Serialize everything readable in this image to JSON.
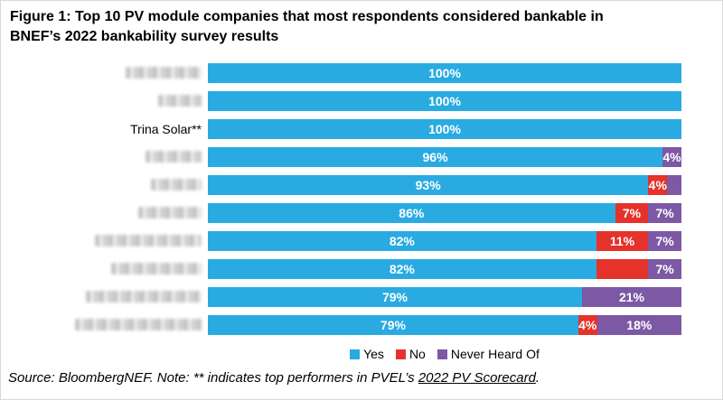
{
  "figure_caption": {
    "line1": "Figure 1:  Top 10 PV module companies that most respondents considered bankable in",
    "line2": "BNEF’s 2022 bankability survey results"
  },
  "source": {
    "prefix": "Source: BloombergNEF. Note: ** indicates top performers in PVEL’s ",
    "link": "2022 PV Scorecard",
    "suffix": "."
  },
  "chart_data": {
    "type": "bar",
    "orientation": "horizontal",
    "stacked": true,
    "title": "Top 10 PV module companies that most respondents considered bankable in BNEF’s 2022 bankability survey results",
    "xlim": [
      0,
      100
    ],
    "grid": false,
    "legend_position": "bottom",
    "series_names": [
      "Yes",
      "No",
      "Never Heard Of"
    ],
    "series_colors": {
      "Yes": "#29ABE2",
      "No": "#E5322A",
      "Never Heard Of": "#7C58A5"
    },
    "rows": [
      {
        "label": "",
        "redacted": true,
        "blur_width": 84,
        "segments": [
          {
            "series": "Yes",
            "value": 100,
            "label": "100%"
          }
        ]
      },
      {
        "label": "",
        "redacted": true,
        "blur_width": 48,
        "segments": [
          {
            "series": "Yes",
            "value": 100,
            "label": "100%"
          }
        ]
      },
      {
        "label": "Trina Solar**",
        "redacted": false,
        "segments": [
          {
            "series": "Yes",
            "value": 100,
            "label": "100%"
          }
        ]
      },
      {
        "label": "",
        "redacted": true,
        "blur_width": 62,
        "segments": [
          {
            "series": "Yes",
            "value": 96,
            "label": "96%"
          },
          {
            "series": "Never Heard Of",
            "value": 4,
            "label": "4%"
          }
        ]
      },
      {
        "label": "",
        "redacted": true,
        "blur_width": 56,
        "segments": [
          {
            "series": "Yes",
            "value": 93,
            "label": "93%"
          },
          {
            "series": "No",
            "value": 4,
            "label": "4%"
          },
          {
            "series": "Never Heard Of",
            "value": 3,
            "label": ""
          }
        ]
      },
      {
        "label": "",
        "redacted": true,
        "blur_width": 70,
        "segments": [
          {
            "series": "Yes",
            "value": 86,
            "label": "86%"
          },
          {
            "series": "No",
            "value": 7,
            "label": "7%"
          },
          {
            "series": "Never Heard Of",
            "value": 7,
            "label": "7%"
          }
        ]
      },
      {
        "label": "",
        "redacted": true,
        "blur_width": 118,
        "segments": [
          {
            "series": "Yes",
            "value": 82,
            "label": "82%"
          },
          {
            "series": "No",
            "value": 11,
            "label": "11%"
          },
          {
            "series": "Never Heard Of",
            "value": 7,
            "label": "7%"
          }
        ]
      },
      {
        "label": "",
        "redacted": true,
        "blur_width": 100,
        "segments": [
          {
            "series": "Yes",
            "value": 82,
            "label": "82%"
          },
          {
            "series": "No",
            "value": 11,
            "label": ""
          },
          {
            "series": "Never Heard Of",
            "value": 7,
            "label": "7%"
          }
        ]
      },
      {
        "label": "",
        "redacted": true,
        "blur_width": 128,
        "segments": [
          {
            "series": "Yes",
            "value": 79,
            "label": "79%"
          },
          {
            "series": "Never Heard Of",
            "value": 21,
            "label": "21%"
          }
        ]
      },
      {
        "label": "",
        "redacted": true,
        "blur_width": 140,
        "segments": [
          {
            "series": "Yes",
            "value": 79,
            "label": "79%"
          },
          {
            "series": "No",
            "value": 4,
            "label": "4%"
          },
          {
            "series": "Never Heard Of",
            "value": 18,
            "label": "18%"
          }
        ]
      }
    ]
  }
}
